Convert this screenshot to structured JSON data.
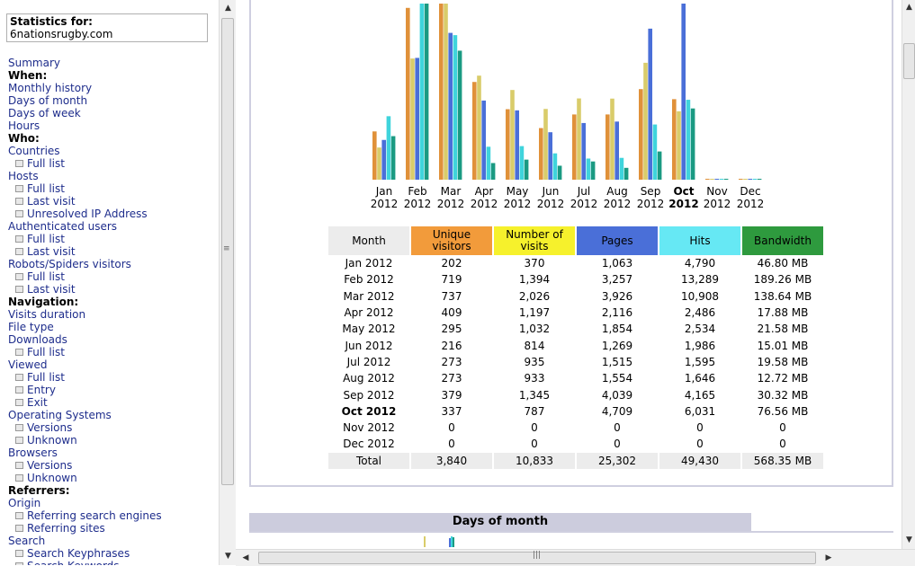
{
  "sidebar": {
    "stats_label": "Statistics for:",
    "site": "6nationsrugby.com",
    "items": [
      {
        "label": "Summary",
        "type": "link"
      },
      {
        "label": "When:",
        "type": "head"
      },
      {
        "label": "Monthly history",
        "type": "link"
      },
      {
        "label": "Days of month",
        "type": "link"
      },
      {
        "label": "Days of week",
        "type": "link"
      },
      {
        "label": "Hours",
        "type": "link"
      },
      {
        "label": "Who:",
        "type": "head"
      },
      {
        "label": "Countries",
        "type": "link"
      },
      {
        "label": "Full list",
        "type": "sub"
      },
      {
        "label": "Hosts",
        "type": "link"
      },
      {
        "label": "Full list",
        "type": "sub"
      },
      {
        "label": "Last visit",
        "type": "sub"
      },
      {
        "label": "Unresolved IP Address",
        "type": "sub"
      },
      {
        "label": "Authenticated users",
        "type": "link"
      },
      {
        "label": "Full list",
        "type": "sub"
      },
      {
        "label": "Last visit",
        "type": "sub"
      },
      {
        "label": "Robots/Spiders visitors",
        "type": "link"
      },
      {
        "label": "Full list",
        "type": "sub"
      },
      {
        "label": "Last visit",
        "type": "sub"
      },
      {
        "label": "Navigation:",
        "type": "head"
      },
      {
        "label": "Visits duration",
        "type": "link"
      },
      {
        "label": "File type",
        "type": "link"
      },
      {
        "label": "Downloads",
        "type": "link"
      },
      {
        "label": "Full list",
        "type": "sub"
      },
      {
        "label": "Viewed",
        "type": "link"
      },
      {
        "label": "Full list",
        "type": "sub"
      },
      {
        "label": "Entry",
        "type": "sub"
      },
      {
        "label": "Exit",
        "type": "sub"
      },
      {
        "label": "Operating Systems",
        "type": "link"
      },
      {
        "label": "Versions",
        "type": "sub"
      },
      {
        "label": "Unknown",
        "type": "sub"
      },
      {
        "label": "Browsers",
        "type": "link"
      },
      {
        "label": "Versions",
        "type": "sub"
      },
      {
        "label": "Unknown",
        "type": "sub"
      },
      {
        "label": "Referrers:",
        "type": "head"
      },
      {
        "label": "Origin",
        "type": "link"
      },
      {
        "label": "Referring search engines",
        "type": "sub"
      },
      {
        "label": "Referring sites",
        "type": "sub"
      },
      {
        "label": "Search",
        "type": "link"
      },
      {
        "label": "Search Keyphrases",
        "type": "sub"
      },
      {
        "label": "Search Keywords",
        "type": "sub"
      }
    ]
  },
  "monthly": {
    "headers": [
      "Month",
      "Unique visitors",
      "Number of visits",
      "Pages",
      "Hits",
      "Bandwidth"
    ],
    "header_colors": [
      "#ececec",
      "#f29b3b",
      "#f6f12c",
      "#4a6fd8",
      "#66e8f4",
      "#2e9a3e"
    ],
    "rows": [
      {
        "month": "Jan 2012",
        "uv": "202",
        "visits": "370",
        "pages": "1,063",
        "hits": "4,790",
        "bw": "46.80 MB",
        "current": false
      },
      {
        "month": "Feb 2012",
        "uv": "719",
        "visits": "1,394",
        "pages": "3,257",
        "hits": "13,289",
        "bw": "189.26 MB",
        "current": false
      },
      {
        "month": "Mar 2012",
        "uv": "737",
        "visits": "2,026",
        "pages": "3,926",
        "hits": "10,908",
        "bw": "138.64 MB",
        "current": false
      },
      {
        "month": "Apr 2012",
        "uv": "409",
        "visits": "1,197",
        "pages": "2,116",
        "hits": "2,486",
        "bw": "17.88 MB",
        "current": false
      },
      {
        "month": "May 2012",
        "uv": "295",
        "visits": "1,032",
        "pages": "1,854",
        "hits": "2,534",
        "bw": "21.58 MB",
        "current": false
      },
      {
        "month": "Jun 2012",
        "uv": "216",
        "visits": "814",
        "pages": "1,269",
        "hits": "1,986",
        "bw": "15.01 MB",
        "current": false
      },
      {
        "month": "Jul 2012",
        "uv": "273",
        "visits": "935",
        "pages": "1,515",
        "hits": "1,595",
        "bw": "19.58 MB",
        "current": false
      },
      {
        "month": "Aug 2012",
        "uv": "273",
        "visits": "933",
        "pages": "1,554",
        "hits": "1,646",
        "bw": "12.72 MB",
        "current": false
      },
      {
        "month": "Sep 2012",
        "uv": "379",
        "visits": "1,345",
        "pages": "4,039",
        "hits": "4,165",
        "bw": "30.32 MB",
        "current": false
      },
      {
        "month": "Oct 2012",
        "uv": "337",
        "visits": "787",
        "pages": "4,709",
        "hits": "6,031",
        "bw": "76.56 MB",
        "current": true
      },
      {
        "month": "Nov 2012",
        "uv": "0",
        "visits": "0",
        "pages": "0",
        "hits": "0",
        "bw": "0",
        "current": false
      },
      {
        "month": "Dec 2012",
        "uv": "0",
        "visits": "0",
        "pages": "0",
        "hits": "0",
        "bw": "0",
        "current": false
      }
    ],
    "total": {
      "month": "Total",
      "uv": "3,840",
      "visits": "10,833",
      "pages": "25,302",
      "hits": "49,430",
      "bw": "568.35 MB"
    }
  },
  "chart_data": {
    "type": "bar",
    "categories": [
      "Jan 2012",
      "Feb 2012",
      "Mar 2012",
      "Apr 2012",
      "May 2012",
      "Jun 2012",
      "Jul 2012",
      "Aug 2012",
      "Sep 2012",
      "Oct 2012",
      "Nov 2012",
      "Dec 2012"
    ],
    "current": "Oct 2012",
    "series": [
      {
        "key": "uv",
        "color": "#e0913a",
        "values": [
          202,
          719,
          737,
          409,
          295,
          216,
          273,
          273,
          379,
          337,
          0,
          0
        ]
      },
      {
        "key": "visits",
        "color": "#d9cc6a",
        "values": [
          370,
          1394,
          2026,
          1197,
          1032,
          814,
          935,
          933,
          1345,
          787,
          0,
          0
        ]
      },
      {
        "key": "pages",
        "color": "#4a6fd8",
        "values": [
          1063,
          3257,
          3926,
          2116,
          1854,
          1269,
          1515,
          1554,
          4039,
          4709,
          0,
          0
        ]
      },
      {
        "key": "hits",
        "color": "#3fd4dc",
        "values": [
          4790,
          13289,
          10908,
          2486,
          2534,
          1986,
          1595,
          1646,
          4165,
          6031,
          0,
          0
        ]
      },
      {
        "key": "bw",
        "color": "#1a9a82",
        "values": [
          46.8,
          189.26,
          138.64,
          17.88,
          21.58,
          15.01,
          19.58,
          12.72,
          30.32,
          76.56,
          0,
          0
        ]
      }
    ]
  },
  "days_of_month": {
    "title": "Days of month"
  }
}
